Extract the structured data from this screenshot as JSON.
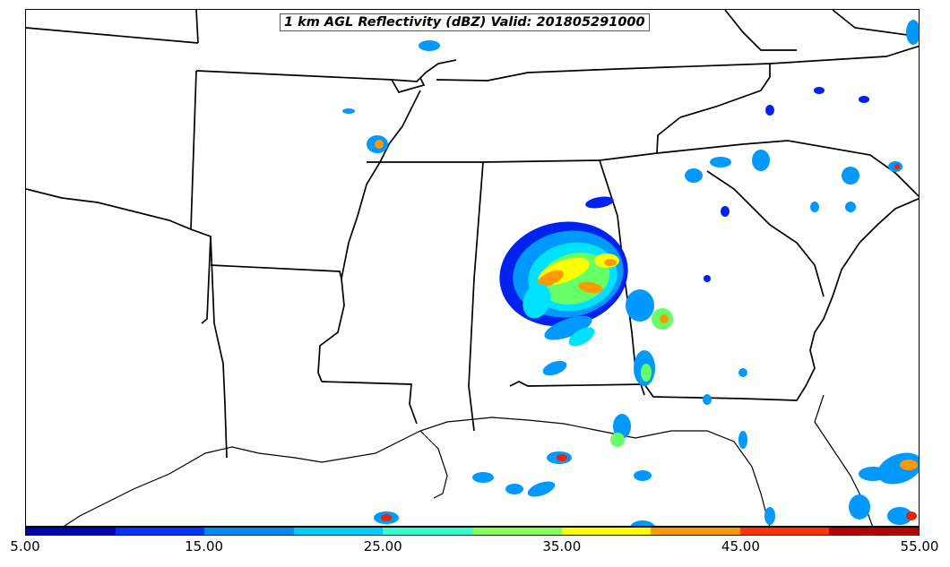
{
  "title": "1 km AGL Reflectivity (dBZ) Valid: 201805291000",
  "colorbar": {
    "colors": [
      "#0000b4",
      "#0033ff",
      "#0088ff",
      "#00ccff",
      "#33ffcc",
      "#88ff55",
      "#ffff00",
      "#ff9900",
      "#ff3300",
      "#b40000"
    ],
    "tick_labels": [
      "5.00",
      "15.00",
      "25.00",
      "35.00",
      "45.00",
      "55.00"
    ]
  },
  "reflectivity_colors": {
    "weak": "#0022ee",
    "light": "#0099ff",
    "moderate": "#00e0ff",
    "green": "#66ff66",
    "yellow": "#ffff00",
    "orange": "#ff9900",
    "red": "#ee2200"
  }
}
